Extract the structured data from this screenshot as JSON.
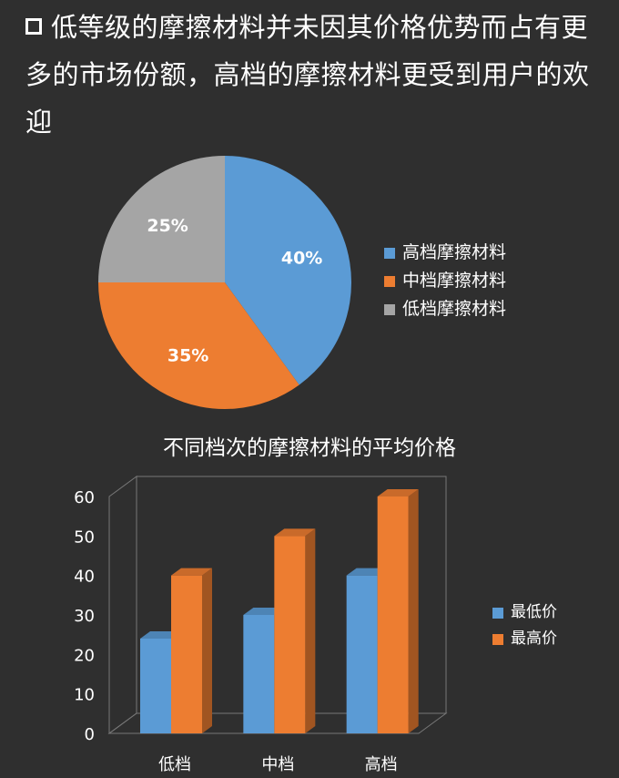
{
  "headline": "低等级的摩擦材料并未因其价格优势而占有更多的市场份额，高档的摩擦材料更受到用户的欢迎",
  "chart_data": [
    {
      "type": "pie",
      "title": "",
      "slices": [
        {
          "label": "高档摩擦材料",
          "value": 40,
          "display": "40%",
          "color": "#5b9bd5"
        },
        {
          "label": "中档摩擦材料",
          "value": 35,
          "display": "35%",
          "color": "#ed7d31"
        },
        {
          "label": "低档摩擦材料",
          "value": 25,
          "display": "25%",
          "color": "#a5a5a5"
        }
      ],
      "legend_position": "right"
    },
    {
      "type": "bar",
      "title": "不同档次的摩擦材料的平均价格",
      "categories": [
        "低档",
        "中档",
        "高档"
      ],
      "series": [
        {
          "name": "最低价",
          "values": [
            24,
            30,
            40
          ],
          "color": "#5b9bd5"
        },
        {
          "name": "最高价",
          "values": [
            40,
            50,
            60
          ],
          "color": "#ed7d31"
        }
      ],
      "ylim": [
        0,
        60
      ],
      "yticks": [
        "0",
        "10",
        "20",
        "30",
        "40",
        "50",
        "60"
      ],
      "grid": false,
      "legend_position": "right"
    }
  ]
}
